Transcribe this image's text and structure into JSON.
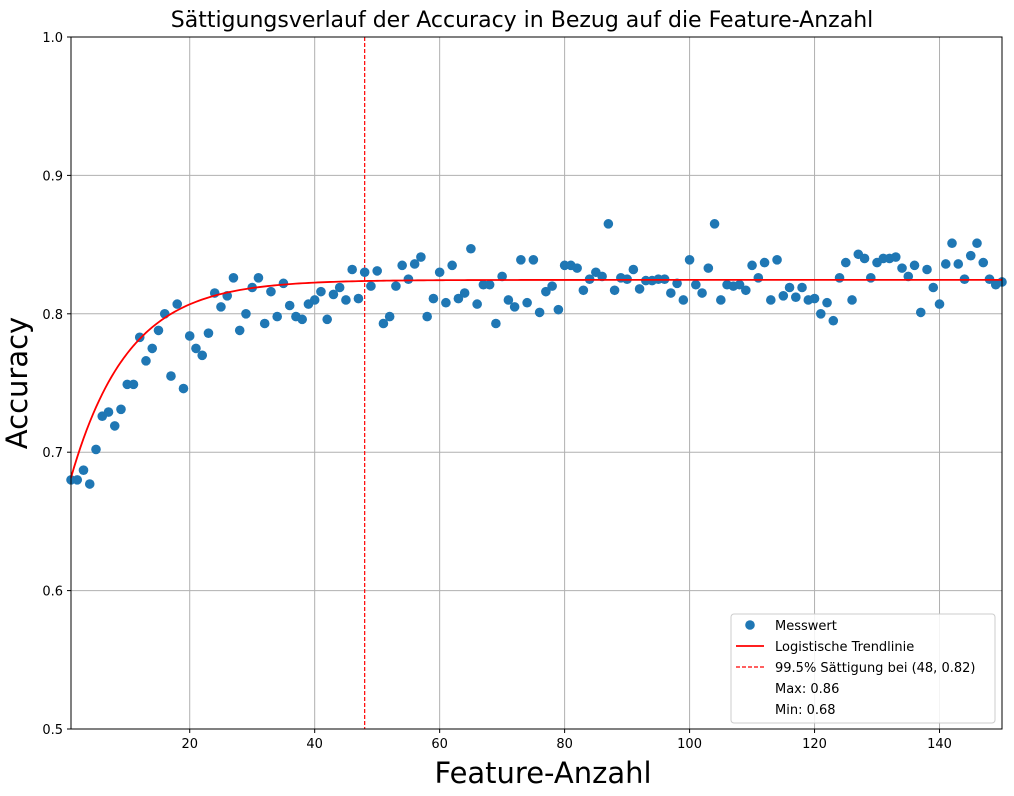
{
  "chart_data": {
    "type": "scatter",
    "title": "Sättigungsverlauf der Accuracy in Bezug auf die Feature-Anzahl",
    "xlabel": "Feature-Anzahl",
    "ylabel": "Accuracy",
    "xlim": [
      1,
      150
    ],
    "ylim": [
      0.5,
      1.0
    ],
    "xticks": [
      20,
      40,
      60,
      80,
      100,
      120,
      140
    ],
    "yticks": [
      0.5,
      0.6,
      0.7,
      0.8,
      0.9,
      1.0
    ],
    "grid": true,
    "legend_position": "bottom-right",
    "colors": {
      "points": "#1f77b4",
      "trend": "#ff0000",
      "saturation": "#ff0000",
      "grid": "#b0b0b0"
    },
    "series": [
      {
        "name": "Messwert",
        "kind": "scatter",
        "x": [
          1,
          2,
          3,
          4,
          5,
          6,
          7,
          8,
          9,
          10,
          11,
          12,
          13,
          14,
          15,
          16,
          17,
          18,
          19,
          20,
          21,
          22,
          23,
          24,
          25,
          26,
          27,
          28,
          29,
          30,
          31,
          32,
          33,
          34,
          35,
          36,
          37,
          38,
          39,
          40,
          41,
          42,
          43,
          44,
          45,
          46,
          47,
          48,
          49,
          50,
          51,
          52,
          53,
          54,
          55,
          56,
          57,
          58,
          59,
          60,
          61,
          62,
          63,
          64,
          65,
          66,
          67,
          68,
          69,
          70,
          71,
          72,
          73,
          74,
          75,
          76,
          77,
          78,
          79,
          80,
          81,
          82,
          83,
          84,
          85,
          86,
          87,
          88,
          89,
          90,
          91,
          92,
          93,
          94,
          95,
          96,
          97,
          98,
          99,
          100,
          101,
          102,
          103,
          104,
          105,
          106,
          107,
          108,
          109,
          110,
          111,
          112,
          113,
          114,
          115,
          116,
          117,
          118,
          119,
          120,
          121,
          122,
          123,
          124,
          125,
          126,
          127,
          128,
          129,
          130,
          131,
          132,
          133,
          134,
          135,
          136,
          137,
          138,
          139,
          140,
          141,
          142,
          143,
          144,
          145,
          146,
          147,
          148,
          149,
          150
        ],
        "y": [
          0.68,
          0.68,
          0.687,
          0.677,
          0.702,
          0.726,
          0.729,
          0.719,
          0.731,
          0.749,
          0.749,
          0.783,
          0.766,
          0.775,
          0.788,
          0.8,
          0.755,
          0.807,
          0.746,
          0.784,
          0.775,
          0.77,
          0.786,
          0.815,
          0.805,
          0.813,
          0.826,
          0.788,
          0.8,
          0.819,
          0.826,
          0.793,
          0.816,
          0.798,
          0.822,
          0.806,
          0.798,
          0.796,
          0.807,
          0.81,
          0.816,
          0.796,
          0.814,
          0.819,
          0.81,
          0.832,
          0.811,
          0.83,
          0.82,
          0.831,
          0.793,
          0.798,
          0.82,
          0.835,
          0.825,
          0.836,
          0.841,
          0.798,
          0.811,
          0.83,
          0.808,
          0.835,
          0.811,
          0.815,
          0.847,
          0.807,
          0.821,
          0.821,
          0.793,
          0.827,
          0.81,
          0.805,
          0.839,
          0.808,
          0.839,
          0.801,
          0.816,
          0.82,
          0.803,
          0.835,
          0.835,
          0.833,
          0.817,
          0.825,
          0.83,
          0.827,
          0.865,
          0.817,
          0.826,
          0.825,
          0.832,
          0.818,
          0.824,
          0.824,
          0.825,
          0.825,
          0.815,
          0.822,
          0.81,
          0.839,
          0.821,
          0.815,
          0.833,
          0.865,
          0.81,
          0.821,
          0.82,
          0.821,
          0.817,
          0.835,
          0.826,
          0.837,
          0.81,
          0.839,
          0.813,
          0.819,
          0.812,
          0.819,
          0.81,
          0.811,
          0.8,
          0.808,
          0.795,
          0.826,
          0.837,
          0.81,
          0.843,
          0.84,
          0.826,
          0.837,
          0.84,
          0.84,
          0.841,
          0.833,
          0.827,
          0.835,
          0.801,
          0.832,
          0.819,
          0.807,
          0.836,
          0.851,
          0.836,
          0.825,
          0.842,
          0.851,
          0.837,
          0.825,
          0.821,
          0.823
        ]
      },
      {
        "name": "Logistische Trendlinie",
        "kind": "line",
        "model": {
          "plateau": 0.8245,
          "amplitude": 0.1595,
          "rate": 0.11,
          "x0": 0
        }
      },
      {
        "name": "99.5% Sättigung bei (48, 0.82)",
        "kind": "vline",
        "x": 48
      }
    ],
    "legend": {
      "entries": [
        {
          "label": "Messwert",
          "marker": "dot"
        },
        {
          "label": "Logistische Trendlinie",
          "marker": "line"
        },
        {
          "label": "99.5% Sättigung bei (48, 0.82)",
          "marker": "dashed"
        },
        {
          "label": "Max: 0.86",
          "marker": "none"
        },
        {
          "label": "Min: 0.68",
          "marker": "none"
        }
      ]
    }
  }
}
